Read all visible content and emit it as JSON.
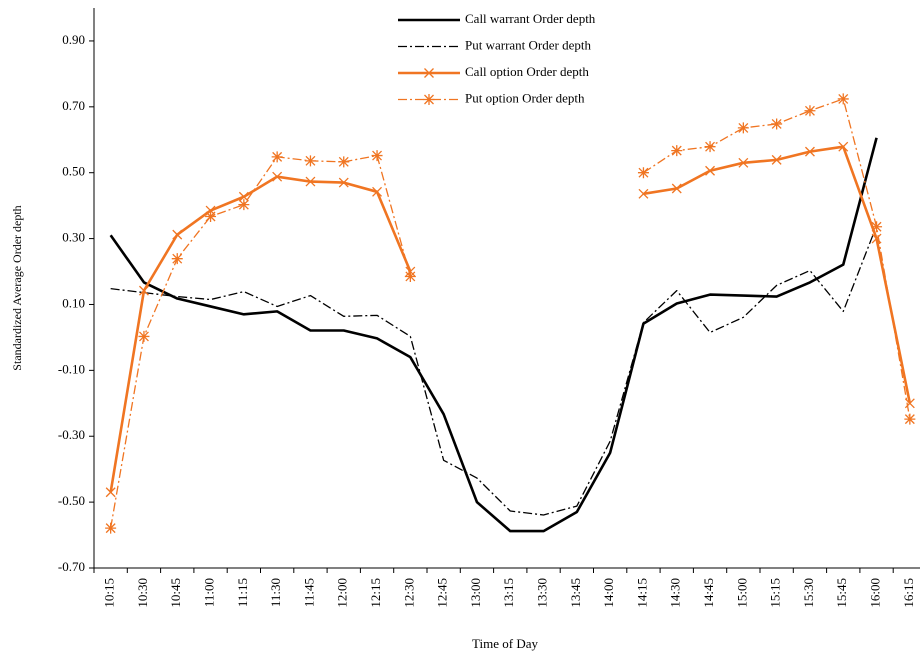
{
  "chart_data": {
    "type": "line",
    "y_label": "Standardized Average Order depth",
    "x_label": "Time of Day",
    "categories": [
      "10:15",
      "10:30",
      "10:45",
      "11:00",
      "11:15",
      "11:30",
      "11:45",
      "12:00",
      "12:15",
      "12:30",
      "12:45",
      "13:00",
      "13:15",
      "13:30",
      "13:45",
      "14:00",
      "14:15",
      "14:30",
      "14:45",
      "15:00",
      "15:15",
      "15:30",
      "15:45",
      "16:00",
      "16:15"
    ],
    "ylim": [
      -0.7,
      1.0
    ],
    "yticks": [
      {
        "value": -0.7,
        "label": "-0.70"
      },
      {
        "value": -0.5,
        "label": "-0.50"
      },
      {
        "value": -0.3,
        "label": "-0.30"
      },
      {
        "value": -0.1,
        "label": "-0.10"
      },
      {
        "value": 0.1,
        "label": "0.10"
      },
      {
        "value": 0.3,
        "label": "0.30"
      },
      {
        "value": 0.5,
        "label": "0.50"
      },
      {
        "value": 0.7,
        "label": "0.70"
      },
      {
        "value": 0.9,
        "label": "0.90"
      }
    ],
    "grid": false,
    "legend": "top",
    "series": [
      {
        "name": "Call warrant Order depth",
        "color": "#000000",
        "style": "solid",
        "marker": "none",
        "values": [
          0.31,
          0.167,
          0.118,
          0.094,
          0.07,
          0.079,
          0.021,
          0.021,
          -0.003,
          -0.06,
          -0.233,
          -0.5,
          -0.588,
          -0.588,
          -0.53,
          -0.35,
          0.042,
          0.103,
          0.13,
          0.127,
          0.124,
          0.167,
          0.221,
          0.606,
          null
        ]
      },
      {
        "name": "Put warrant Order depth",
        "color": "#000000",
        "style": "dashdot",
        "marker": "none",
        "values": [
          0.148,
          0.136,
          0.124,
          0.115,
          0.139,
          0.094,
          0.127,
          0.064,
          0.067,
          0.003,
          -0.373,
          -0.427,
          -0.527,
          -0.539,
          -0.512,
          -0.315,
          0.045,
          0.142,
          0.015,
          0.061,
          0.158,
          0.203,
          0.079,
          0.339,
          null
        ]
      },
      {
        "name": "Call option Order depth",
        "color": "#f07522",
        "style": "solid",
        "marker": "x",
        "values": [
          -0.47,
          0.142,
          0.312,
          0.385,
          0.427,
          0.488,
          0.473,
          0.47,
          0.442,
          0.2,
          null,
          null,
          null,
          null,
          null,
          null,
          0.436,
          0.452,
          0.506,
          0.53,
          0.539,
          0.564,
          0.579,
          0.3,
          -0.2
        ]
      },
      {
        "name": "Put option Order depth",
        "color": "#f07522",
        "style": "dashdot",
        "marker": "star",
        "values": [
          -0.579,
          0.003,
          0.239,
          0.367,
          0.403,
          0.548,
          0.536,
          0.533,
          0.552,
          0.185,
          null,
          null,
          null,
          null,
          null,
          null,
          0.5,
          0.567,
          0.579,
          0.636,
          0.648,
          0.688,
          0.724,
          0.336,
          -0.248
        ]
      }
    ]
  }
}
